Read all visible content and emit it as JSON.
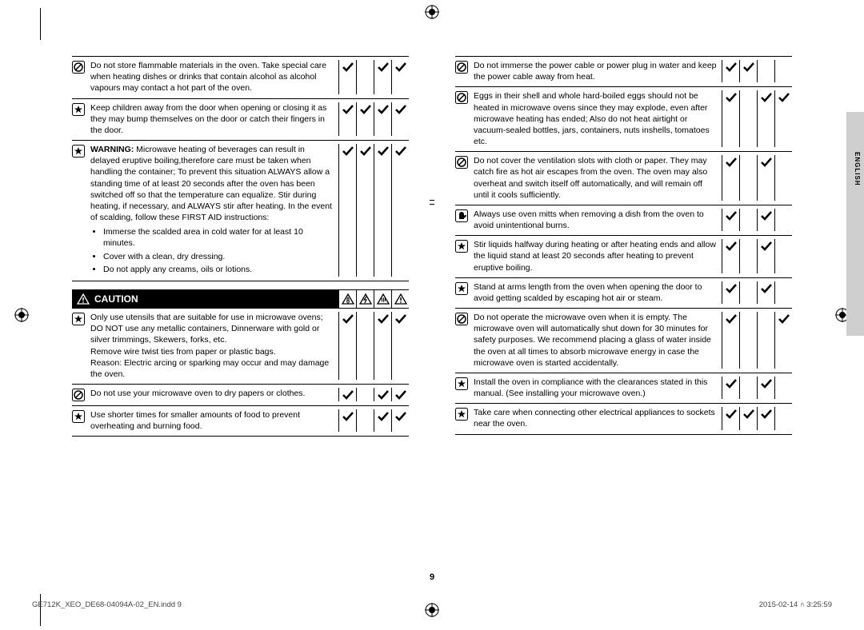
{
  "page_number": "9",
  "language_tab": "ENGLISH",
  "footer": {
    "left": "GE712K_XEO_DE68-04094A-02_EN.indd   9",
    "right": "2015-02-14   ⑃ 3:25:59"
  },
  "caution": {
    "label": "CAUTION"
  },
  "icons": {
    "prohibit": "prohibit",
    "star": "star",
    "mitt": "mitt"
  },
  "checkmarks": [
    "c1",
    "c2",
    "c3",
    "c4"
  ],
  "left_section_a": [
    {
      "icon": "prohibit",
      "text": "Do not store flammable materials in the oven. Take special care when heating dishes or drinks that contain alcohol as alcohol vapours may contact a hot part of the oven.",
      "checks": [
        true,
        false,
        true,
        true
      ]
    },
    {
      "icon": "star",
      "text": "Keep children away from the door when opening or closing it as they may bump themselves on the door or catch their fingers in the door.",
      "checks": [
        true,
        true,
        true,
        true
      ]
    },
    {
      "icon": "star",
      "text_pre_bold": "WARNING:",
      "text": " Microwave heating of beverages can result in delayed eruptive boiling,therefore care must be taken when handling the container; To prevent this situation ALWAYS allow a standing time of at least 20 seconds after the oven has been switched off so that the temperature can equalize. Stir during heating, if necessary, and ALWAYS stir after heating. In the event of scalding, follow these FIRST AID instructions:",
      "bullets": [
        "Immerse the scalded area in cold water for at least 10 minutes.",
        "Cover with a clean, dry dressing.",
        "Do not apply any creams, oils or lotions."
      ],
      "checks": [
        true,
        true,
        true,
        true
      ]
    }
  ],
  "left_section_b": [
    {
      "icon": "star",
      "text": "Only use utensils that are suitable for use in microwave ovens; DO NOT use any metallic containers, Dinnerware with gold or silver trimmings, Skewers, forks, etc.\nRemove wire twist ties from paper or plastic bags.\nReason: Electric arcing or sparking may occur and may damage the oven.",
      "checks": [
        true,
        false,
        true,
        true
      ]
    },
    {
      "icon": "prohibit",
      "text": "Do not use your microwave oven to dry papers or clothes.",
      "checks": [
        true,
        false,
        true,
        true
      ]
    },
    {
      "icon": "star",
      "text": "Use shorter times for smaller amounts of food to prevent overheating and burning food.",
      "checks": [
        true,
        false,
        true,
        true
      ]
    }
  ],
  "right_section": [
    {
      "icon": "prohibit",
      "text": "Do not immerse the power cable or power plug in water and keep the power cable away from heat.",
      "checks": [
        true,
        true,
        false,
        false
      ]
    },
    {
      "icon": "prohibit",
      "text": "Eggs in their shell and whole hard-boiled eggs should not be heated in microwave ovens since they may explode, even after microwave heating has ended; Also do not heat airtight or vacuum-sealed bottles, jars, containers, nuts inshells, tomatoes etc.",
      "checks": [
        true,
        false,
        true,
        true
      ]
    },
    {
      "icon": "prohibit",
      "text": "Do not cover the ventilation slots with cloth or paper. They may catch fire as hot air escapes from the oven. The oven may also overheat and switch itself off automatically, and will remain off until it cools sufficiently.",
      "checks": [
        true,
        false,
        true,
        false
      ]
    },
    {
      "icon": "mitt",
      "text": "Always use oven mitts when removing a dish from the oven to avoid unintentional burns.",
      "checks": [
        true,
        false,
        true,
        false
      ]
    },
    {
      "icon": "star",
      "text": "Stir liquids halfway during heating or after heating ends and allow the liquid stand at least 20 seconds after heating to prevent eruptive boiling.",
      "checks": [
        true,
        false,
        true,
        false
      ]
    },
    {
      "icon": "star",
      "text": "Stand at arms length from the oven when opening the door to avoid getting scalded by escaping hot air or steam.",
      "checks": [
        true,
        false,
        true,
        false
      ]
    },
    {
      "icon": "prohibit",
      "text": "Do not operate the microwave oven when it is empty. The microwave oven will automatically shut down for 30 minutes for safety purposes. We recommend placing a glass of water inside the oven at all times to absorb microwave energy in case the microwave oven is started accidentally.",
      "checks": [
        true,
        false,
        false,
        true
      ]
    },
    {
      "icon": "star",
      "text": "Install the oven in compliance with the clearances stated in this manual. (See installing your microwave oven.)",
      "checks": [
        true,
        false,
        true,
        false
      ]
    },
    {
      "icon": "star",
      "text": "Take care when connecting other electrical appliances to sockets near the oven.",
      "checks": [
        true,
        true,
        true,
        false
      ]
    }
  ]
}
